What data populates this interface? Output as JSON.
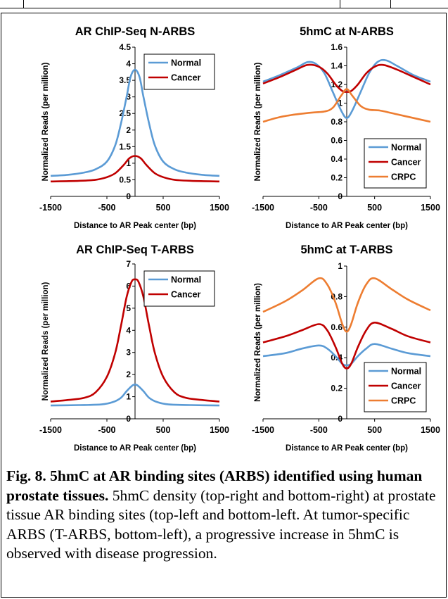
{
  "chart_data": [
    {
      "type": "line",
      "title": "AR ChIP-Seq N-ARBS",
      "xlabel": "Distance to AR Peak center (bp)",
      "ylabel": "Normalized Reads (per million)",
      "xlim": [
        -1500,
        1500
      ],
      "ylim": [
        0,
        4.5
      ],
      "xticks": [
        -1500,
        -500,
        500,
        1500
      ],
      "yticks": [
        0,
        0.5,
        1,
        1.5,
        2,
        2.5,
        3,
        3.5,
        4,
        4.5
      ],
      "legend": "top-right",
      "series": [
        {
          "name": "Normal",
          "color": "#5b9bd5",
          "x": [
            -1500,
            -1200,
            -900,
            -700,
            -500,
            -350,
            -250,
            -150,
            -80,
            0,
            80,
            150,
            250,
            350,
            500,
            700,
            900,
            1200,
            1500
          ],
          "y": [
            0.62,
            0.65,
            0.72,
            0.82,
            1.05,
            1.55,
            2.2,
            3.0,
            3.6,
            3.82,
            3.6,
            3.0,
            2.2,
            1.55,
            1.05,
            0.82,
            0.72,
            0.65,
            0.62
          ]
        },
        {
          "name": "Cancer",
          "color": "#c00000",
          "x": [
            -1500,
            -1000,
            -700,
            -500,
            -350,
            -200,
            -100,
            0,
            100,
            200,
            350,
            500,
            700,
            1000,
            1500
          ],
          "y": [
            0.45,
            0.47,
            0.5,
            0.58,
            0.7,
            0.95,
            1.15,
            1.22,
            1.15,
            0.95,
            0.7,
            0.58,
            0.5,
            0.47,
            0.45
          ]
        }
      ]
    },
    {
      "type": "line",
      "title": "5hmC at N-ARBS",
      "xlabel": "Distance to AR Peak center (bp)",
      "ylabel": "Normalized Reads (per million)",
      "xlim": [
        -1500,
        1500
      ],
      "ylim": [
        0,
        1.6
      ],
      "xticks": [
        -1500,
        -500,
        500,
        1500
      ],
      "yticks": [
        0,
        0.2,
        0.4,
        0.6,
        0.8,
        1,
        1.2,
        1.4,
        1.6
      ],
      "legend": "bottom-right",
      "series": [
        {
          "name": "Normal",
          "color": "#5b9bd5",
          "x": [
            -1500,
            -1200,
            -900,
            -700,
            -550,
            -400,
            -250,
            -100,
            0,
            100,
            250,
            400,
            550,
            700,
            900,
            1200,
            1500
          ],
          "y": [
            1.23,
            1.3,
            1.38,
            1.44,
            1.42,
            1.32,
            1.12,
            0.92,
            0.84,
            0.92,
            1.12,
            1.32,
            1.44,
            1.46,
            1.4,
            1.3,
            1.23
          ]
        },
        {
          "name": "Cancer",
          "color": "#c00000",
          "x": [
            -1500,
            -1200,
            -900,
            -700,
            -500,
            -350,
            -200,
            -80,
            0,
            80,
            200,
            350,
            500,
            650,
            900,
            1200,
            1500
          ],
          "y": [
            1.21,
            1.28,
            1.36,
            1.41,
            1.39,
            1.32,
            1.2,
            1.13,
            1.12,
            1.13,
            1.2,
            1.32,
            1.39,
            1.41,
            1.36,
            1.28,
            1.2
          ]
        },
        {
          "name": "CRPC",
          "color": "#ed7d31",
          "x": [
            -1500,
            -1200,
            -900,
            -600,
            -400,
            -250,
            -100,
            0,
            100,
            250,
            400,
            600,
            900,
            1200,
            1500
          ],
          "y": [
            0.8,
            0.85,
            0.88,
            0.9,
            0.91,
            0.95,
            1.08,
            1.15,
            1.08,
            0.97,
            0.93,
            0.92,
            0.88,
            0.84,
            0.8
          ]
        }
      ]
    },
    {
      "type": "line",
      "title": "AR ChIP-Seq T-ARBS",
      "xlabel": "Distance to AR Peak center (bp)",
      "ylabel": "Normalized Reads (per million)",
      "xlim": [
        -1500,
        1500
      ],
      "ylim": [
        0,
        7
      ],
      "xticks": [
        -1500,
        -500,
        500,
        1500
      ],
      "yticks": [
        0,
        1,
        2,
        3,
        4,
        5,
        6,
        7
      ],
      "legend": "top-right",
      "series": [
        {
          "name": "Normal",
          "color": "#5b9bd5",
          "x": [
            -1500,
            -1000,
            -600,
            -400,
            -250,
            -150,
            -50,
            0,
            50,
            150,
            250,
            400,
            600,
            1000,
            1500
          ],
          "y": [
            0.6,
            0.62,
            0.65,
            0.75,
            0.95,
            1.25,
            1.5,
            1.55,
            1.5,
            1.25,
            0.95,
            0.75,
            0.65,
            0.62,
            0.6
          ]
        },
        {
          "name": "Cancer",
          "color": "#c00000",
          "x": [
            -1500,
            -1200,
            -900,
            -700,
            -500,
            -350,
            -250,
            -150,
            -60,
            0,
            60,
            150,
            250,
            350,
            500,
            700,
            900,
            1200,
            1500
          ],
          "y": [
            0.78,
            0.85,
            0.95,
            1.2,
            1.9,
            3.0,
            4.2,
            5.5,
            6.2,
            6.3,
            6.2,
            5.5,
            4.2,
            3.0,
            1.9,
            1.2,
            0.95,
            0.85,
            0.78
          ]
        }
      ]
    },
    {
      "type": "line",
      "title": "5hmC at T-ARBS",
      "xlabel": "Distance to AR Peak center (bp)",
      "ylabel": "Normalized Reads (per million)",
      "xlim": [
        -1500,
        1500
      ],
      "ylim": [
        0,
        1
      ],
      "xticks": [
        -1500,
        -500,
        500,
        1500
      ],
      "yticks": [
        0,
        0.2,
        0.4,
        0.6,
        0.8,
        1
      ],
      "legend": "bottom-right",
      "series": [
        {
          "name": "Normal",
          "color": "#5b9bd5",
          "x": [
            -1500,
            -1100,
            -800,
            -500,
            -350,
            -200,
            -80,
            0,
            80,
            200,
            350,
            500,
            800,
            1100,
            1500
          ],
          "y": [
            0.41,
            0.43,
            0.46,
            0.48,
            0.46,
            0.41,
            0.36,
            0.35,
            0.36,
            0.41,
            0.46,
            0.49,
            0.46,
            0.43,
            0.41
          ]
        },
        {
          "name": "Cancer",
          "color": "#c00000",
          "x": [
            -1500,
            -1100,
            -800,
            -500,
            -350,
            -200,
            -80,
            0,
            80,
            200,
            350,
            500,
            800,
            1100,
            1500
          ],
          "y": [
            0.5,
            0.54,
            0.58,
            0.62,
            0.58,
            0.47,
            0.36,
            0.33,
            0.36,
            0.47,
            0.58,
            0.63,
            0.59,
            0.54,
            0.5
          ]
        },
        {
          "name": "CRPC",
          "color": "#ed7d31",
          "x": [
            -1500,
            -1100,
            -800,
            -500,
            -350,
            -200,
            -80,
            0,
            80,
            200,
            350,
            500,
            800,
            1100,
            1500
          ],
          "y": [
            0.7,
            0.77,
            0.84,
            0.92,
            0.88,
            0.76,
            0.62,
            0.57,
            0.62,
            0.76,
            0.88,
            0.92,
            0.85,
            0.78,
            0.71
          ]
        }
      ]
    }
  ],
  "caption": {
    "bold": "Fig. 8.  5hmC at AR binding sites (ARBS) identified using human prostate tissues.",
    "body": "  5hmC density (top-right and bottom-right) at prostate tissue AR binding sites (top-left and bottom-left.  At tumor-specific ARBS (T-ARBS, bottom-left), a progressive increase in 5hmC is observed with disease progression."
  }
}
